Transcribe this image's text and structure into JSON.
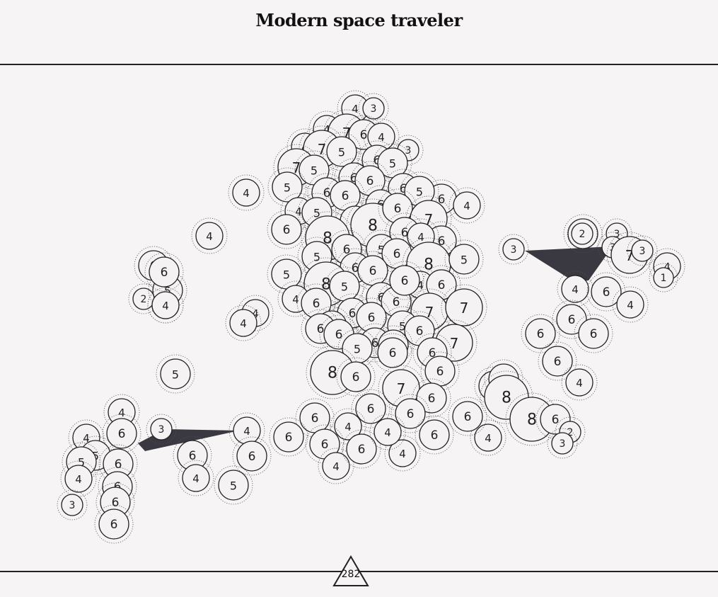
{
  "title": "Modern space traveler",
  "counter": "282",
  "colors": {
    "background": "#f6f4f4",
    "node_fill": "#f4f2f2",
    "node_stroke": "#222222",
    "link_fill": "#3a3840",
    "rule": "#222222"
  },
  "nodes": [
    {
      "v": 4
    },
    {
      "v": 3
    },
    {
      "v": 4
    },
    {
      "v": 7
    },
    {
      "v": 6
    },
    {
      "v": 4
    },
    {
      "v": 3
    },
    {
      "v": 4
    },
    {
      "v": 7
    },
    {
      "v": 5
    },
    {
      "v": 6
    },
    {
      "v": 5
    },
    {
      "v": 7
    },
    {
      "v": 5
    },
    {
      "v": 6
    },
    {
      "v": 6
    },
    {
      "v": 6
    },
    {
      "v": 5
    },
    {
      "v": 4
    },
    {
      "v": 6
    },
    {
      "v": 6
    },
    {
      "v": 6
    },
    {
      "v": 5
    },
    {
      "v": 6
    },
    {
      "v": 4
    },
    {
      "v": 4
    },
    {
      "v": 5
    },
    {
      "v": 5
    },
    {
      "v": 8
    },
    {
      "v": 6
    },
    {
      "v": 6
    },
    {
      "v": 7
    },
    {
      "v": 6
    },
    {
      "v": 8
    },
    {
      "v": 6
    },
    {
      "v": 6
    },
    {
      "v": 4
    },
    {
      "v": 4
    },
    {
      "v": 5
    },
    {
      "v": 6
    },
    {
      "v": 5
    },
    {
      "v": 6
    },
    {
      "v": 6
    },
    {
      "v": 8
    },
    {
      "v": 5
    },
    {
      "v": 5
    },
    {
      "v": 8
    },
    {
      "v": 5
    },
    {
      "v": 6
    },
    {
      "v": 6
    },
    {
      "v": 4
    },
    {
      "v": 6
    },
    {
      "v": 4
    },
    {
      "v": 6
    },
    {
      "v": 6
    },
    {
      "v": 6
    },
    {
      "v": 7
    },
    {
      "v": 7
    },
    {
      "v": 6
    },
    {
      "v": 6
    },
    {
      "v": 5
    },
    {
      "v": 6
    },
    {
      "v": 6
    },
    {
      "v": 6
    },
    {
      "v": 6
    },
    {
      "v": 5
    },
    {
      "v": 7
    },
    {
      "v": 6
    },
    {
      "v": 6
    },
    {
      "v": 6
    },
    {
      "v": 8
    },
    {
      "v": 6
    },
    {
      "v": 6
    },
    {
      "v": 7
    },
    {
      "v": 6
    },
    {
      "v": 6
    },
    {
      "v": 6
    },
    {
      "v": 6
    },
    {
      "v": 4
    },
    {
      "v": 6
    },
    {
      "v": 6
    },
    {
      "v": 4
    },
    {
      "v": 6
    },
    {
      "v": 4
    },
    {
      "v": 6
    },
    {
      "v": 4
    },
    {
      "v": 4
    },
    {
      "v": 6
    },
    {
      "v": 3
    },
    {
      "v": 5
    },
    {
      "v": 2
    },
    {
      "v": 4
    },
    {
      "v": 4
    },
    {
      "v": 4
    },
    {
      "v": 5
    },
    {
      "v": 2
    },
    {
      "v": 3
    },
    {
      "v": 3
    },
    {
      "v": 7
    },
    {
      "v": 3
    },
    {
      "v": 4
    },
    {
      "v": 1
    },
    {
      "v": 4
    },
    {
      "v": 6
    },
    {
      "v": 4
    },
    {
      "v": 6
    },
    {
      "v": 6
    },
    {
      "v": 6
    },
    {
      "v": 6
    },
    {
      "v": 4
    },
    {
      "v": 5
    },
    {
      "v": 5
    },
    {
      "v": 8
    },
    {
      "v": 8
    },
    {
      "v": 6
    },
    {
      "v": 2
    },
    {
      "v": 3
    },
    {
      "v": 4
    },
    {
      "v": 6
    },
    {
      "v": 3
    },
    {
      "v": 4
    },
    {
      "v": 4
    },
    {
      "v": 5
    },
    {
      "v": 5
    },
    {
      "v": 6
    },
    {
      "v": 6
    },
    {
      "v": 4
    },
    {
      "v": 6
    },
    {
      "v": 5
    },
    {
      "v": 3
    },
    {
      "v": 6
    },
    {
      "v": 6
    },
    {
      "v": 4
    },
    {
      "v": 6
    },
    {
      "v": 6
    },
    {
      "v": 5
    },
    {
      "v": 6
    },
    {
      "v": 4
    }
  ]
}
